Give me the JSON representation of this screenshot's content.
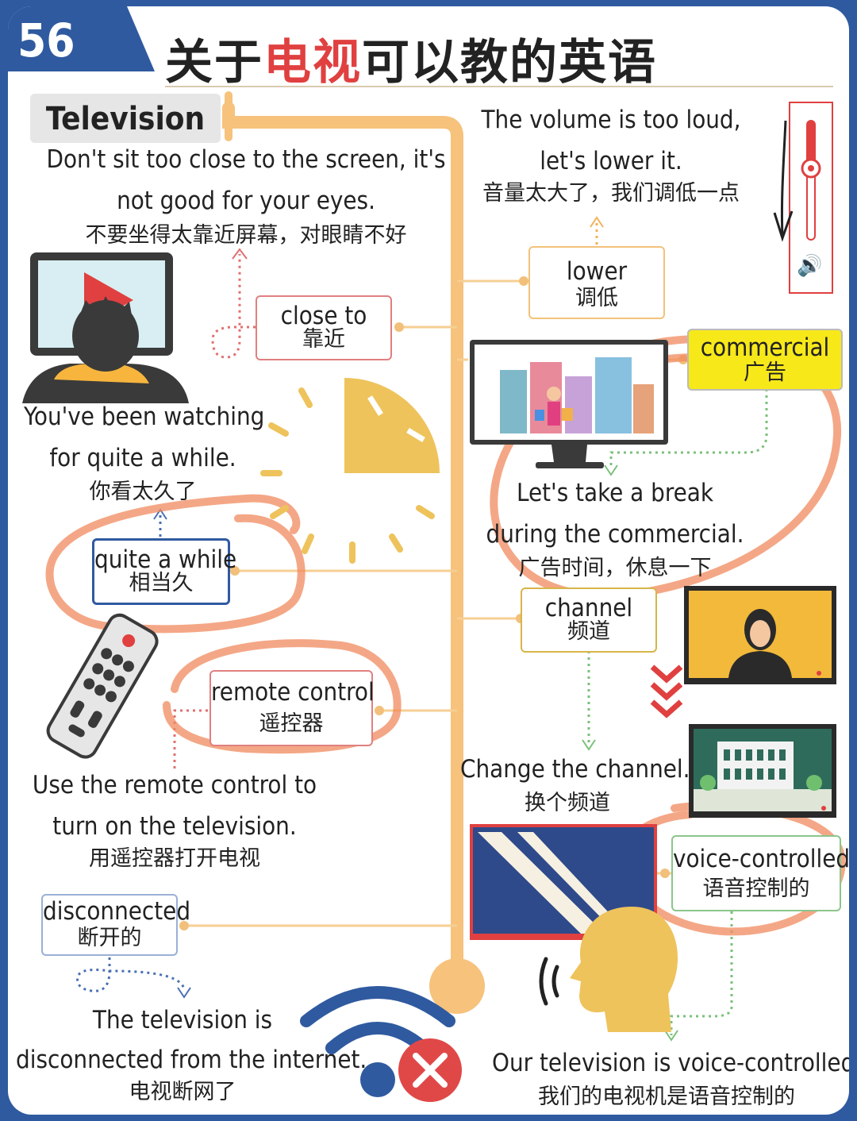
{
  "header": {
    "number": "56",
    "title_part1": "关于",
    "title_part2": "电视",
    "title_part3": "可以教的英语"
  },
  "topic_label": "Television",
  "sentences": {
    "close": {
      "en1": "Don't sit too close to the screen, it's",
      "en2": "not good for your eyes.",
      "zh": "不要坐得太靠近屏幕，对眼睛不好"
    },
    "volume": {
      "en1": "The volume is too loud,",
      "en2": "let's lower it.",
      "zh": "音量太大了，我们调低一点"
    },
    "while": {
      "en1": "You've been watching",
      "en2": "for quite a while.",
      "zh": "你看太久了"
    },
    "commercial": {
      "en1": "Let's take a break",
      "en2": "during the commercial.",
      "zh": "广告时间，休息一下"
    },
    "remote": {
      "en1": "Use the remote control to",
      "en2": "turn on the television.",
      "zh": "用遥控器打开电视"
    },
    "channel": {
      "en1": "Change the channel.",
      "zh": "换个频道"
    },
    "disconnected": {
      "en1": "The television is",
      "en2": "disconnected from the internet.",
      "zh": "电视断网了"
    },
    "voice": {
      "en1": "Our television is voice-controlled.",
      "zh": "我们的电视机是语音控制的"
    }
  },
  "vocab": {
    "close_to": {
      "en": "close to",
      "zh": "靠近"
    },
    "lower": {
      "en": "lower",
      "zh": "调低"
    },
    "commercial": {
      "en": "commercial",
      "zh": "广告"
    },
    "quite_a_while": {
      "en": "quite a while",
      "zh": "相当久"
    },
    "channel": {
      "en": "channel",
      "zh": "频道"
    },
    "remote_control": {
      "en": "remote control",
      "zh": "遥控器"
    },
    "voice_controlled": {
      "en": "voice-controlled",
      "zh": "语音控制的"
    },
    "disconnected": {
      "en": "disconnected",
      "zh": "断开的"
    }
  },
  "colors": {
    "frame_blue": "#2f5aa0",
    "trunk_orange": "#f6c27c",
    "accent_red": "#e04040",
    "highlight_yellow": "#f7e81a",
    "annotation_orange": "#f08a5d",
    "clock_yellow": "#eec35c"
  },
  "icons": [
    "television-icon",
    "viewer-icon",
    "clock-icon",
    "remote-icon",
    "volume-slider-icon",
    "speaker-icon",
    "wifi-off-icon",
    "speaking-head-icon",
    "news-anchor-tv-icon",
    "colosseum-tv-icon",
    "static-tv-icon",
    "triple-chevron-down-icon"
  ]
}
